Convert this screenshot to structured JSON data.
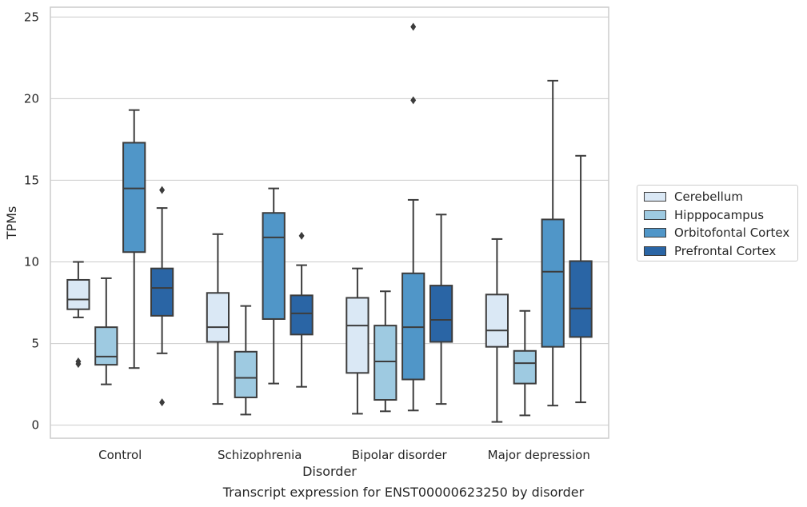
{
  "caption": "Transcript expression for ENST00000623250 by disorder",
  "chart_data": {
    "type": "box",
    "xlabel": "Disorder",
    "ylabel": "TPMs",
    "ylim": [
      -0.8,
      25.6
    ],
    "yticks": [
      0,
      5,
      10,
      15,
      20,
      25
    ],
    "grid": "horizontal",
    "legend_position": "right",
    "categories": [
      "Control",
      "Schizophrenia",
      "Bipolar disorder",
      "Major depression"
    ],
    "series": [
      {
        "name": "Cerebellum",
        "color": "#dae8f5",
        "boxes": [
          {
            "whisker_low": 6.6,
            "q1": 7.1,
            "median": 7.7,
            "q3": 8.9,
            "whisker_high": 10.0,
            "outliers": [
              3.75,
              3.9
            ]
          },
          {
            "whisker_low": 1.3,
            "q1": 5.1,
            "median": 6.0,
            "q3": 8.1,
            "whisker_high": 11.7,
            "outliers": []
          },
          {
            "whisker_low": 0.7,
            "q1": 3.2,
            "median": 6.1,
            "q3": 7.8,
            "whisker_high": 9.6,
            "outliers": []
          },
          {
            "whisker_low": 0.2,
            "q1": 4.8,
            "median": 5.8,
            "q3": 8.0,
            "whisker_high": 11.4,
            "outliers": []
          }
        ]
      },
      {
        "name": "Hipppocampus",
        "color": "#9ecae1",
        "boxes": [
          {
            "whisker_low": 2.5,
            "q1": 3.7,
            "median": 4.2,
            "q3": 6.0,
            "whisker_high": 9.0,
            "outliers": []
          },
          {
            "whisker_low": 0.65,
            "q1": 1.7,
            "median": 2.9,
            "q3": 4.5,
            "whisker_high": 7.3,
            "outliers": []
          },
          {
            "whisker_low": 0.85,
            "q1": 1.55,
            "median": 3.9,
            "q3": 6.1,
            "whisker_high": 8.2,
            "outliers": []
          },
          {
            "whisker_low": 0.6,
            "q1": 2.55,
            "median": 3.8,
            "q3": 4.55,
            "whisker_high": 7.0,
            "outliers": []
          }
        ]
      },
      {
        "name": "Orbitofontal Cortex",
        "color": "#5096c8",
        "boxes": [
          {
            "whisker_low": 3.5,
            "q1": 10.6,
            "median": 14.5,
            "q3": 17.3,
            "whisker_high": 19.3,
            "outliers": []
          },
          {
            "whisker_low": 2.55,
            "q1": 6.5,
            "median": 11.5,
            "q3": 13.0,
            "whisker_high": 14.5,
            "outliers": []
          },
          {
            "whisker_low": 0.9,
            "q1": 2.8,
            "median": 6.0,
            "q3": 9.3,
            "whisker_high": 13.8,
            "outliers": [
              19.9,
              24.4
            ]
          },
          {
            "whisker_low": 1.2,
            "q1": 4.8,
            "median": 9.4,
            "q3": 12.6,
            "whisker_high": 21.1,
            "outliers": []
          }
        ]
      },
      {
        "name": "Prefrontal Cortex",
        "color": "#2a65a5",
        "boxes": [
          {
            "whisker_low": 4.4,
            "q1": 6.7,
            "median": 8.4,
            "q3": 9.6,
            "whisker_high": 13.3,
            "outliers": [
              14.4,
              1.4
            ]
          },
          {
            "whisker_low": 2.35,
            "q1": 5.55,
            "median": 6.85,
            "q3": 7.95,
            "whisker_high": 9.8,
            "outliers": [
              11.6
            ]
          },
          {
            "whisker_low": 1.3,
            "q1": 5.1,
            "median": 6.45,
            "q3": 8.55,
            "whisker_high": 12.9,
            "outliers": []
          },
          {
            "whisker_low": 1.4,
            "q1": 5.4,
            "median": 7.15,
            "q3": 10.05,
            "whisker_high": 16.5,
            "outliers": []
          }
        ]
      }
    ]
  }
}
